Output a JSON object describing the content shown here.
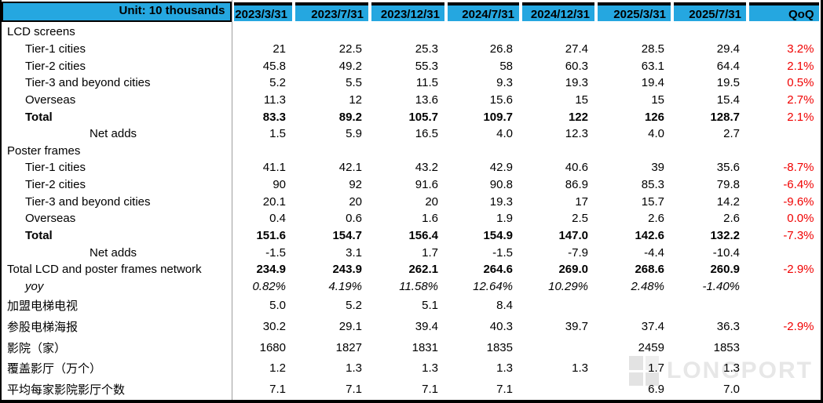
{
  "colors": {
    "header_cyan": "#25a7e0",
    "value_blue": "#2ea9df",
    "negative_red": "#f00000",
    "divider_gray": "#9e9e9e"
  },
  "watermark": {
    "text": "LONGPORT"
  },
  "chart_data": {
    "type": "table",
    "unit_label": "Unit: 10 thousands",
    "columns": [
      "2023/3/31",
      "2023/7/31",
      "2023/12/31",
      "2024/7/31",
      "2024/12/31",
      "2025/3/31",
      "2025/7/31"
    ],
    "qoq_header": "QoQ",
    "rows": [
      {
        "label": "LCD screens",
        "indent": 0,
        "label_style": "plain",
        "value_style": "plain",
        "values": [
          "",
          "",
          "",
          "",
          "",
          "",
          ""
        ],
        "qoq": ""
      },
      {
        "label": "Tier-1 cities",
        "indent": 1,
        "label_style": "plain",
        "value_style": "blue",
        "values": [
          "21",
          "22.5",
          "25.3",
          "26.8",
          "27.4",
          "28.5",
          "29.4"
        ],
        "qoq": "3.2%"
      },
      {
        "label": "Tier-2 cities",
        "indent": 1,
        "label_style": "plain",
        "value_style": "blue",
        "values": [
          "45.8",
          "49.2",
          "55.3",
          "58",
          "60.3",
          "63.1",
          "64.4"
        ],
        "qoq": "2.1%"
      },
      {
        "label": "Tier-3 and beyond cities",
        "indent": 1,
        "label_style": "plain",
        "value_style": "blue",
        "values": [
          "5.2",
          "5.5",
          "11.5",
          "9.3",
          "19.3",
          "19.4",
          "19.5"
        ],
        "qoq": "0.5%"
      },
      {
        "label": "Overseas",
        "indent": 1,
        "label_style": "plain",
        "value_style": "blue",
        "values": [
          "11.3",
          "12",
          "13.6",
          "15.6",
          "15",
          "15",
          "15.4"
        ],
        "qoq": "2.7%"
      },
      {
        "label": "Total",
        "indent": 1,
        "label_style": "bold",
        "value_style": "bold",
        "values": [
          "83.3",
          "89.2",
          "105.7",
          "109.7",
          "122",
          "126",
          "128.7"
        ],
        "qoq": "2.1%"
      },
      {
        "label": "Net adds",
        "indent": 2,
        "label_style": "red",
        "value_style": "red",
        "values": [
          "1.5",
          "5.9",
          "16.5",
          "4.0",
          "12.3",
          "4.0",
          "2.7"
        ],
        "qoq": ""
      },
      {
        "label": "Poster frames",
        "indent": 0,
        "label_style": "plain",
        "value_style": "plain",
        "values": [
          "",
          "",
          "",
          "",
          "",
          "",
          ""
        ],
        "qoq": ""
      },
      {
        "label": "Tier-1 cities",
        "indent": 1,
        "label_style": "plain",
        "value_style": "blue",
        "values": [
          "41.1",
          "42.1",
          "43.2",
          "42.9",
          "40.6",
          "39",
          "35.6"
        ],
        "qoq": "-8.7%"
      },
      {
        "label": "Tier-2 cities",
        "indent": 1,
        "label_style": "plain",
        "value_style": "blue",
        "values": [
          "90",
          "92",
          "91.6",
          "90.8",
          "86.9",
          "85.3",
          "79.8"
        ],
        "qoq": "-6.4%"
      },
      {
        "label": "Tier-3 and beyond cities",
        "indent": 1,
        "label_style": "plain",
        "value_style": "blue",
        "values": [
          "20.1",
          "20",
          "20",
          "19.3",
          "17",
          "15.7",
          "14.2"
        ],
        "qoq": "-9.6%"
      },
      {
        "label": "Overseas",
        "indent": 1,
        "label_style": "plain",
        "value_style": "blue",
        "values": [
          "0.4",
          "0.6",
          "1.6",
          "1.9",
          "2.5",
          "2.6",
          "2.6"
        ],
        "qoq": "0.0%"
      },
      {
        "label": "Total",
        "indent": 1,
        "label_style": "bold",
        "value_style": "bold",
        "values": [
          "151.6",
          "154.7",
          "156.4",
          "154.9",
          "147.0",
          "142.6",
          "132.2"
        ],
        "qoq": "-7.3%"
      },
      {
        "label": "Net adds",
        "indent": 2,
        "label_style": "red",
        "value_style": "red",
        "values": [
          "-1.5",
          "3.1",
          "1.7",
          "-1.5",
          "-7.9",
          "-4.4",
          "-10.4"
        ],
        "qoq": ""
      },
      {
        "label": "Total LCD and poster  frames network",
        "indent": 0,
        "label_style": "plain",
        "value_style": "bold",
        "values": [
          "234.9",
          "243.9",
          "262.1",
          "264.6",
          "269.0",
          "268.6",
          "260.9"
        ],
        "qoq": "-2.9%"
      },
      {
        "label": "yoy",
        "indent": 1,
        "label_style": "italic",
        "value_style": "italic",
        "values": [
          "0.82%",
          "4.19%",
          "11.58%",
          "12.64%",
          "10.29%",
          "2.48%",
          "-1.40%"
        ],
        "qoq": ""
      },
      {
        "label": "",
        "indent": 0,
        "label_style": "plain",
        "value_style": "plain",
        "values": [
          "",
          "",
          "",
          "",
          "",
          "",
          ""
        ],
        "qoq": ""
      },
      {
        "label": "加盟电梯电视",
        "indent": 0,
        "label_style": "plain",
        "value_style": "blue",
        "values": [
          "5.0",
          "5.2",
          "5.1",
          "8.4",
          "",
          "",
          ""
        ],
        "qoq": ""
      },
      {
        "label": "参股电梯海报",
        "indent": 0,
        "label_style": "plain",
        "value_style": "blue",
        "values": [
          "30.2",
          "29.1",
          "39.4",
          "40.3",
          "39.7",
          "37.4",
          "36.3"
        ],
        "qoq": "-2.9%"
      },
      {
        "label": "影院（家）",
        "indent": 0,
        "label_style": "plain",
        "value_style": "blue",
        "values": [
          "1680",
          "1827",
          "1831",
          "1835",
          "",
          "2459",
          "1853"
        ],
        "qoq": ""
      },
      {
        "label": "覆盖影厅（万个）",
        "indent": 0,
        "label_style": "plain",
        "value_style": "blue",
        "values": [
          "1.2",
          "1.3",
          "1.3",
          "1.3",
          "1.3",
          "1.7",
          "1.3"
        ],
        "qoq": ""
      },
      {
        "label": "平均每家影院影厅个数",
        "indent": 0,
        "label_style": "plain",
        "value_style": "plain",
        "values": [
          "7.1",
          "7.1",
          "7.1",
          "7.1",
          "",
          "6.9",
          "7.0"
        ],
        "qoq": ""
      }
    ]
  }
}
